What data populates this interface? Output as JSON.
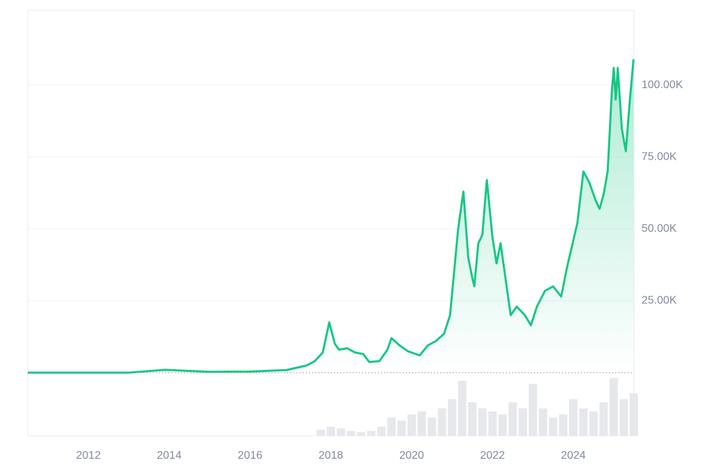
{
  "chart_data": {
    "type": "line",
    "xlim": [
      2010.5,
      2025.5
    ],
    "xticks": [
      2012,
      2014,
      2016,
      2018,
      2020,
      2022,
      2024
    ],
    "ylim": [
      0,
      126000
    ],
    "yticks": [
      {
        "value": 25000,
        "label": "25.00K"
      },
      {
        "value": 50000,
        "label": "50.00K"
      },
      {
        "value": 75000,
        "label": "75.00K"
      },
      {
        "value": 100000,
        "label": "100.00K"
      }
    ],
    "grid": true,
    "series": [
      {
        "color": "#16c784",
        "x": [
          2010.5,
          2013.0,
          2013.9,
          2014.5,
          2015.0,
          2016.0,
          2016.9,
          2017.4,
          2017.6,
          2017.8,
          2017.96,
          2018.1,
          2018.2,
          2018.4,
          2018.6,
          2018.8,
          2018.95,
          2019.2,
          2019.4,
          2019.5,
          2019.7,
          2019.9,
          2020.2,
          2020.4,
          2020.6,
          2020.8,
          2020.95,
          2021.05,
          2021.15,
          2021.28,
          2021.4,
          2021.5,
          2021.55,
          2021.65,
          2021.75,
          2021.86,
          2022.0,
          2022.1,
          2022.2,
          2022.35,
          2022.45,
          2022.6,
          2022.8,
          2022.95,
          2023.1,
          2023.3,
          2023.5,
          2023.7,
          2023.85,
          2023.95,
          2024.1,
          2024.25,
          2024.4,
          2024.55,
          2024.65,
          2024.75,
          2024.85,
          2024.95,
          2025.0,
          2025.05,
          2025.1,
          2025.2,
          2025.3,
          2025.4,
          2025.49
        ],
        "values": [
          0,
          15,
          1000,
          600,
          300,
          400,
          900,
          2500,
          4000,
          7000,
          17500,
          10000,
          8000,
          8500,
          7000,
          6500,
          3700,
          4000,
          8000,
          12000,
          9500,
          7500,
          6000,
          9500,
          11000,
          13500,
          20000,
          35000,
          50000,
          63000,
          40000,
          33000,
          30000,
          45000,
          48000,
          67000,
          47000,
          38000,
          45000,
          30000,
          20000,
          23000,
          20000,
          16500,
          23000,
          28500,
          30000,
          26500,
          37000,
          43000,
          52000,
          70000,
          66000,
          60000,
          57000,
          62000,
          70000,
          97000,
          106000,
          95000,
          106000,
          85000,
          77000,
          95000,
          109000
        ]
      }
    ],
    "volume": {
      "color": "#e6e8ec",
      "ylim": [
        0,
        100
      ],
      "x": [
        2017.75,
        2018.0,
        2018.25,
        2018.5,
        2018.75,
        2019.0,
        2019.25,
        2019.5,
        2019.75,
        2020.0,
        2020.25,
        2020.5,
        2020.75,
        2021.0,
        2021.25,
        2021.5,
        2021.75,
        2022.0,
        2022.25,
        2022.5,
        2022.75,
        2023.0,
        2023.25,
        2023.5,
        2023.75,
        2024.0,
        2024.25,
        2024.5,
        2024.75,
        2025.0,
        2025.25,
        2025.5
      ],
      "values": [
        10,
        15,
        12,
        8,
        6,
        8,
        15,
        30,
        25,
        35,
        40,
        30,
        45,
        60,
        90,
        55,
        45,
        40,
        35,
        55,
        45,
        85,
        45,
        30,
        35,
        60,
        45,
        40,
        55,
        95,
        60,
        70
      ]
    }
  }
}
